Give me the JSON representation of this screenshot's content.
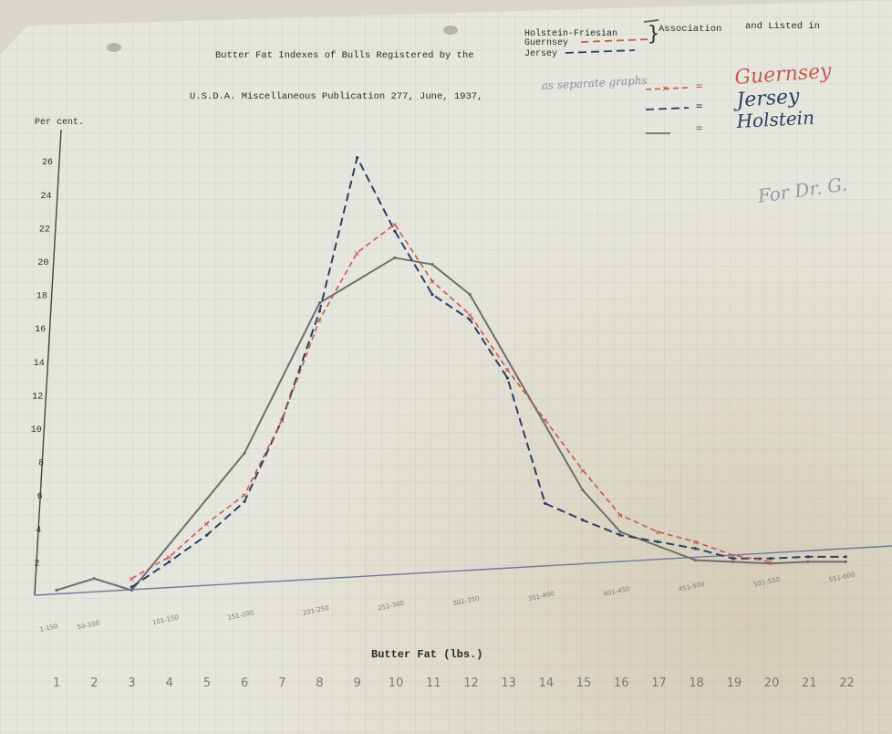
{
  "colors": {
    "paper": "#e7e6dc",
    "grid": "#b9cccb",
    "holstein": "#6e6e6e",
    "guernsey": "#c45a52",
    "jersey": "#2c3f63"
  },
  "header": {
    "title_part1": "Butter Fat Indexes of Bulls Registered by the",
    "title_part2": "Association",
    "title_part3": "and Listed in",
    "subtitle": "U.S.D.A. Miscellaneous Publication 277, June, 1937,",
    "subtitle_note": "as separate graphs",
    "assoc_holstein": "Holstein-Friesian",
    "assoc_guernsey": "Guernsey",
    "assoc_jersey": "Jersey"
  },
  "legend": {
    "guernsey_label": "Guernsey",
    "jersey_label": "Jersey",
    "holstein_label": "Holstein",
    "note": "For Dr. G."
  },
  "chart_data": {
    "type": "line",
    "title": "Butter Fat Indexes of Bulls Registered by the Association and Listed in U.S.D.A. Miscellaneous Publication 277, June, 1937",
    "xlabel": "Butter Fat (lbs.)",
    "ylabel": "Per cent.",
    "ylim": [
      0,
      26
    ],
    "y_ticks": [
      "2",
      "4",
      "6",
      "8",
      "10",
      "12",
      "14",
      "16",
      "18",
      "20",
      "22",
      "24",
      "26"
    ],
    "x_index": [
      1,
      2,
      3,
      4,
      5,
      6,
      7,
      8,
      9,
      10,
      11,
      12,
      13,
      14,
      15,
      16,
      17,
      18,
      19,
      20,
      21,
      22
    ],
    "x_bin_labels": [
      "1-150",
      "50-100",
      "",
      "101-150",
      "",
      "151-200",
      "",
      "201-250",
      "",
      "251-300",
      "",
      "301-350",
      "",
      "351-400",
      "",
      "401-450",
      "",
      "451-500",
      "",
      "501-550",
      "",
      "551-600"
    ],
    "series": [
      {
        "name": "Holstein",
        "style": "solid",
        "x": [
          1,
          2,
          3,
          6,
          8,
          10,
          11,
          12,
          15,
          16,
          18,
          19,
          20,
          21,
          22
        ],
        "values": [
          0.3,
          1.0,
          0.3,
          8.5,
          17.5,
          20.2,
          19.8,
          18.0,
          6.3,
          3.8,
          2.1,
          2.0,
          1.9,
          2.0,
          2.0
        ]
      },
      {
        "name": "Jersey",
        "style": "dashed",
        "x": [
          3,
          4,
          5,
          6,
          7,
          8,
          9,
          10,
          11,
          12,
          13,
          14,
          15,
          16,
          17,
          18,
          19,
          20,
          21,
          22
        ],
        "values": [
          0.5,
          2.0,
          3.6,
          5.6,
          10.5,
          17.0,
          26.2,
          21.8,
          18.0,
          16.5,
          13.0,
          5.5,
          4.5,
          3.6,
          3.2,
          2.8,
          2.2,
          2.2,
          2.3,
          2.3
        ]
      },
      {
        "name": "Guernsey",
        "style": "dash-cross",
        "x": [
          3,
          4,
          5,
          6,
          7,
          8,
          9,
          10,
          11,
          12,
          13,
          14,
          15,
          16,
          17,
          18,
          19,
          20
        ],
        "values": [
          1.0,
          2.3,
          4.3,
          6.0,
          10.5,
          16.5,
          20.5,
          22.2,
          18.8,
          16.8,
          13.5,
          10.5,
          7.5,
          4.8,
          3.8,
          3.2,
          2.4,
          2.0
        ]
      }
    ]
  }
}
